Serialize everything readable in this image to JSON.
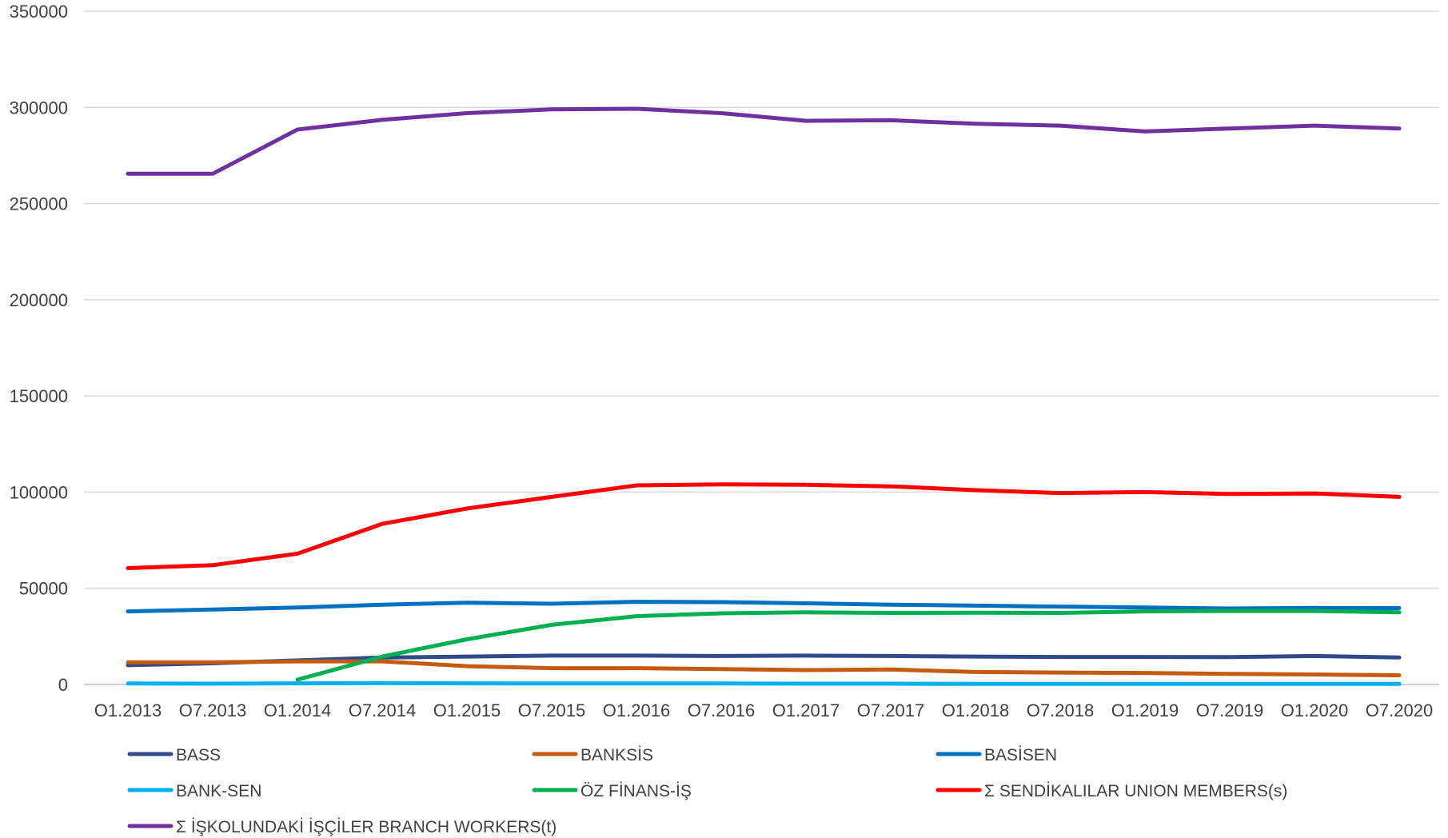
{
  "chart_data": {
    "type": "line",
    "title": "",
    "xlabel": "",
    "ylabel": "",
    "categories": [
      "O1.2013",
      "O7.2013",
      "O1.2014",
      "O7.2014",
      "O1.2015",
      "O7.2015",
      "O1.2016",
      "O7.2016",
      "O1.2017",
      "O7.2017",
      "O1.2018",
      "O7.2018",
      "O1.2019",
      "O7.2019",
      "O1.2020",
      "O7.2020"
    ],
    "ylim": [
      0,
      350000
    ],
    "yticks": [
      0,
      50000,
      100000,
      150000,
      200000,
      250000,
      300000,
      350000
    ],
    "ytick_labels": [
      "0",
      "50000",
      "100000",
      "150000",
      "200000",
      "250000",
      "300000",
      "350000"
    ],
    "grid": "horizontal",
    "legend_position": "bottom",
    "series": [
      {
        "name": "BASS",
        "color": "#2f4b8a",
        "values": [
          10000,
          11000,
          12500,
          14000,
          14500,
          15000,
          15000,
          14800,
          15000,
          14800,
          14500,
          14300,
          14300,
          14200,
          14800,
          14000
        ]
      },
      {
        "name": "BANKSİS",
        "color": "#c55a11",
        "values": [
          11500,
          11500,
          12000,
          12000,
          9500,
          8500,
          8500,
          8000,
          7500,
          7800,
          6500,
          6200,
          6000,
          5500,
          5200,
          4800
        ]
      },
      {
        "name": "BASİSEN",
        "color": "#0070c0",
        "values": [
          38000,
          39000,
          40000,
          41500,
          42500,
          42000,
          43000,
          42800,
          42200,
          41500,
          41000,
          40500,
          40000,
          39500,
          39800,
          39700
        ]
      },
      {
        "name": "BANK-SEN",
        "color": "#00b0f0",
        "values": [
          500,
          400,
          600,
          700,
          600,
          500,
          500,
          500,
          400,
          400,
          300,
          300,
          300,
          300,
          300,
          300
        ]
      },
      {
        "name": "ÖZ FİNANS-İŞ",
        "color": "#00b050",
        "values": [
          null,
          null,
          2500,
          14500,
          23500,
          31000,
          35500,
          37000,
          37500,
          37200,
          37300,
          37200,
          38000,
          38200,
          38200,
          37500
        ]
      },
      {
        "name": "Σ  SENDİKALILAR          UNION MEMBERS(s)",
        "color": "#ff0000",
        "values": [
          60500,
          62000,
          68000,
          83500,
          91500,
          97500,
          103500,
          104000,
          103800,
          103000,
          101000,
          99500,
          100000,
          99000,
          99300,
          97500
        ]
      },
      {
        "name": "Σ İŞKOLUNDAKİ İŞÇİLER BRANCH WORKERS(t)",
        "color": "#7030a0",
        "values": [
          265500,
          265500,
          288500,
          293500,
          297000,
          299000,
          299300,
          297000,
          293000,
          293300,
          291500,
          290500,
          287500,
          289000,
          290500,
          289000
        ]
      }
    ]
  }
}
